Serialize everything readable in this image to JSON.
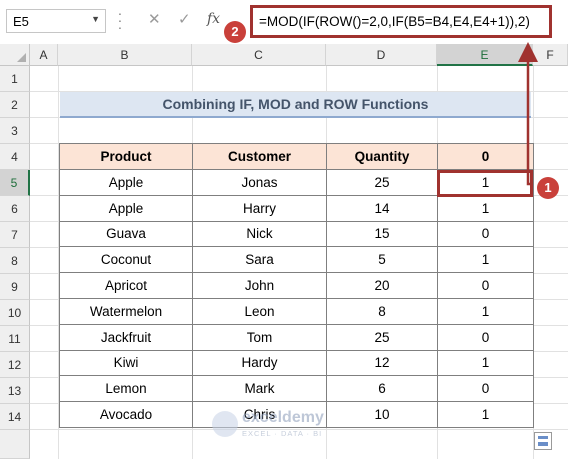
{
  "formula_bar": {
    "name_box": "E5",
    "formula": "=MOD(IF(ROW()=2,0,IF(B5=B4,E4,E4+1)),2)",
    "cancel_icon": "cross-icon",
    "enter_icon": "check-icon",
    "fx_label": "fx"
  },
  "columns": [
    "A",
    "B",
    "C",
    "D",
    "E",
    "F"
  ],
  "rows": [
    "1",
    "2",
    "3",
    "4",
    "5",
    "6",
    "7",
    "8",
    "9",
    "10",
    "11",
    "12",
    "13",
    "14"
  ],
  "title": "Combining IF, MOD and ROW Functions",
  "table": {
    "headers": [
      "Product",
      "Customer",
      "Quantity",
      "0"
    ],
    "rows": [
      [
        "Apple",
        "Jonas",
        "25",
        "1"
      ],
      [
        "Apple",
        "Harry",
        "14",
        "1"
      ],
      [
        "Guava",
        "Nick",
        "15",
        "0"
      ],
      [
        "Coconut",
        "Sara",
        "5",
        "1"
      ],
      [
        "Apricot",
        "John",
        "20",
        "0"
      ],
      [
        "Watermelon",
        "Leon",
        "8",
        "1"
      ],
      [
        "Jackfruit",
        "Tom",
        "25",
        "0"
      ],
      [
        "Kiwi",
        "Hardy",
        "12",
        "1"
      ],
      [
        "Lemon",
        "Mark",
        "6",
        "0"
      ],
      [
        "Avocado",
        "Chris",
        "10",
        "1"
      ]
    ]
  },
  "annotations": {
    "badge_1": "1",
    "badge_2": "2"
  },
  "watermark": {
    "name": "exceldemy",
    "tagline": "EXCEL · DATA · BI"
  },
  "colors": {
    "highlight": "#a0322f",
    "badge": "#c9403a",
    "header_fill": "#fce4d6",
    "title_fill": "#dde6f2",
    "excel_green": "#217346"
  }
}
